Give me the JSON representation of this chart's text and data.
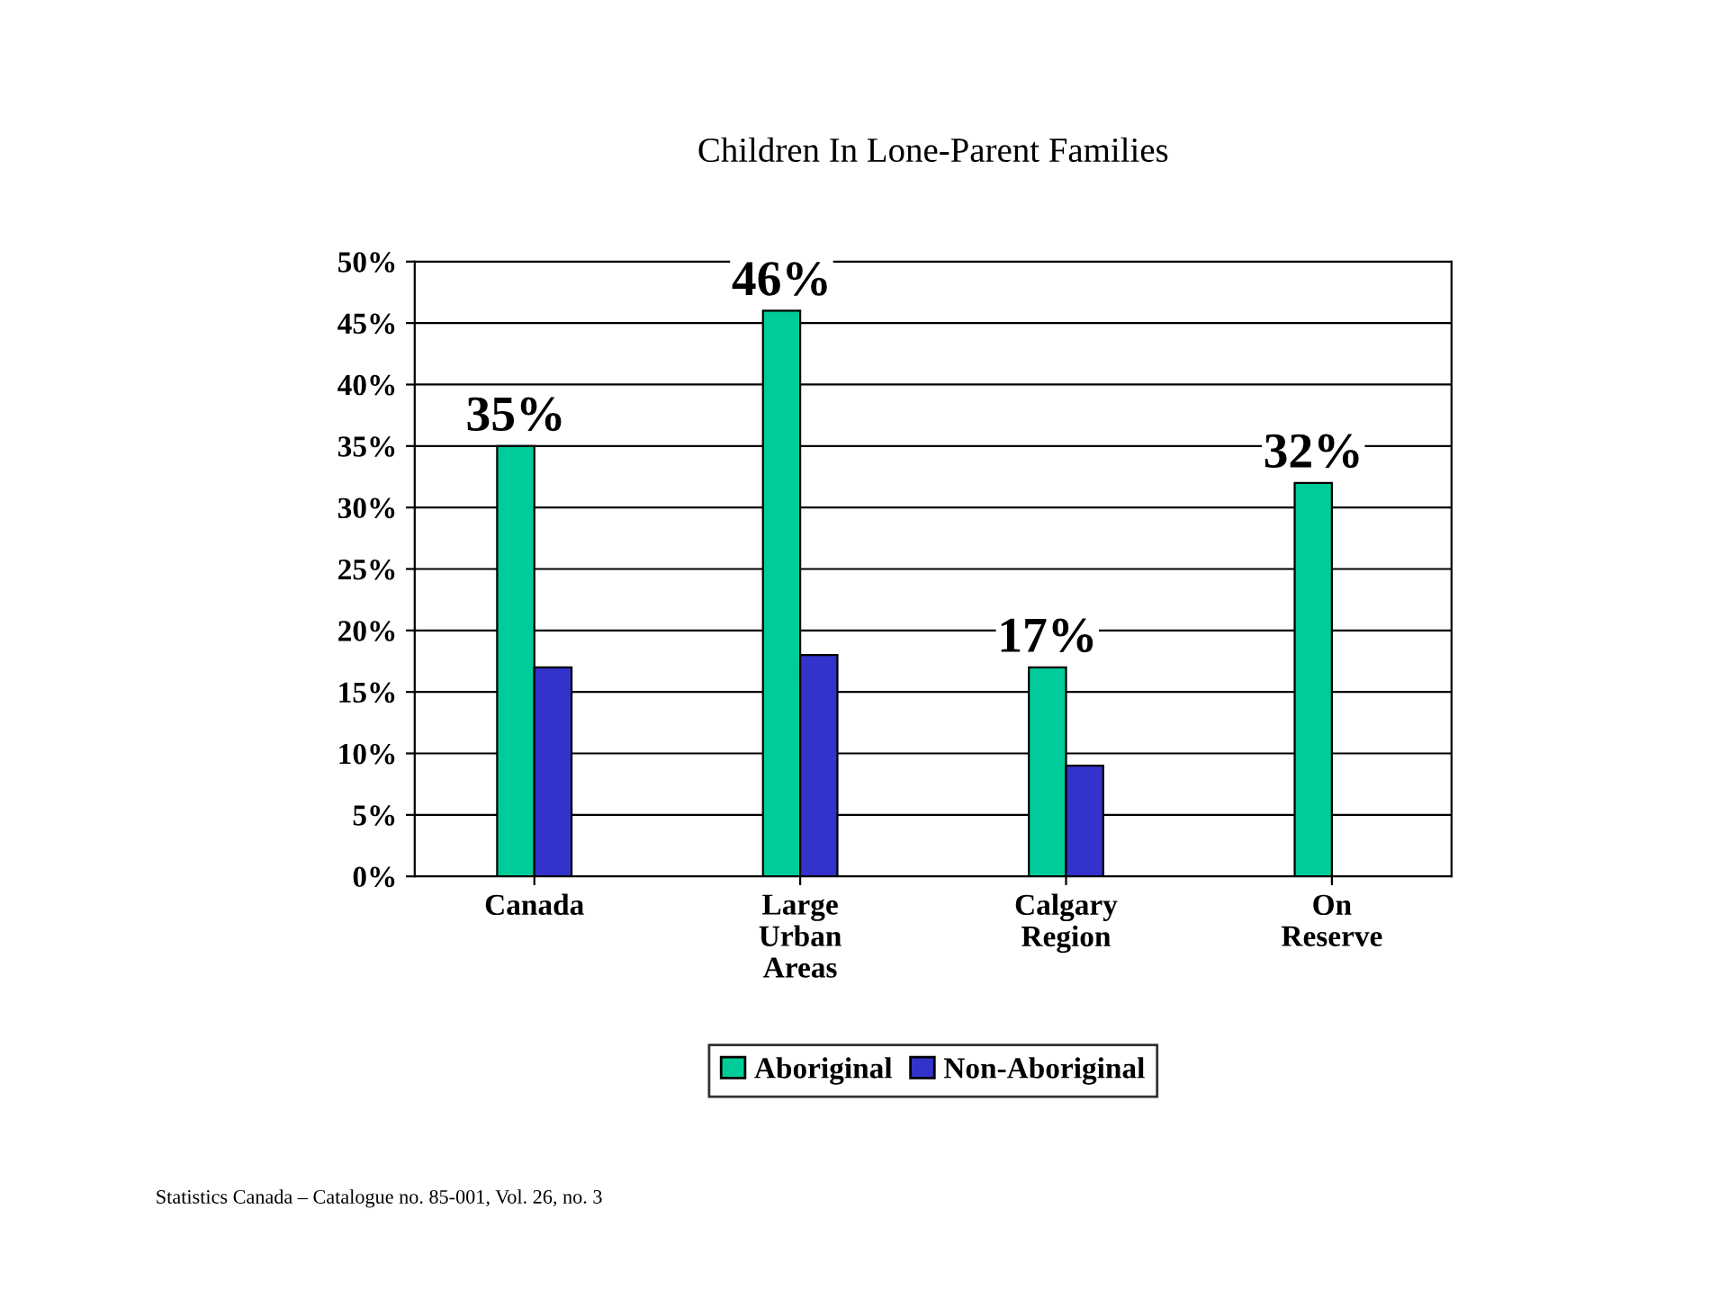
{
  "chart_data": {
    "type": "bar",
    "title": "Children In Lone-Parent Families",
    "categories": [
      "Canada",
      "Large\nUrban\nAreas",
      "Calgary\nRegion",
      "On\nReserve"
    ],
    "series": [
      {
        "name": "Aboriginal",
        "color": "#00cc99",
        "values": [
          35,
          46,
          17,
          32
        ],
        "value_labels": [
          "35%",
          "46%",
          "17%",
          "32%"
        ]
      },
      {
        "name": "Non-Aboriginal",
        "color": "#3333cc",
        "values": [
          17,
          18,
          9,
          null
        ]
      }
    ],
    "ylim": [
      0,
      50
    ],
    "yticks": [
      {
        "value": 0,
        "label": "0%"
      },
      {
        "value": 5,
        "label": "5%"
      },
      {
        "value": 10,
        "label": "10%"
      },
      {
        "value": 15,
        "label": "15%"
      },
      {
        "value": 20,
        "label": "20%"
      },
      {
        "value": 25,
        "label": "25%"
      },
      {
        "value": 30,
        "label": "30%"
      },
      {
        "value": 35,
        "label": "35%"
      },
      {
        "value": 40,
        "label": "40%"
      },
      {
        "value": 45,
        "label": "45%"
      },
      {
        "value": 50,
        "label": "50%"
      }
    ],
    "grid": "y",
    "legend": "bottom",
    "annotations": [
      "Statistics Canada – Catalogue no. 85-001, Vol. 26, no. 3"
    ]
  }
}
